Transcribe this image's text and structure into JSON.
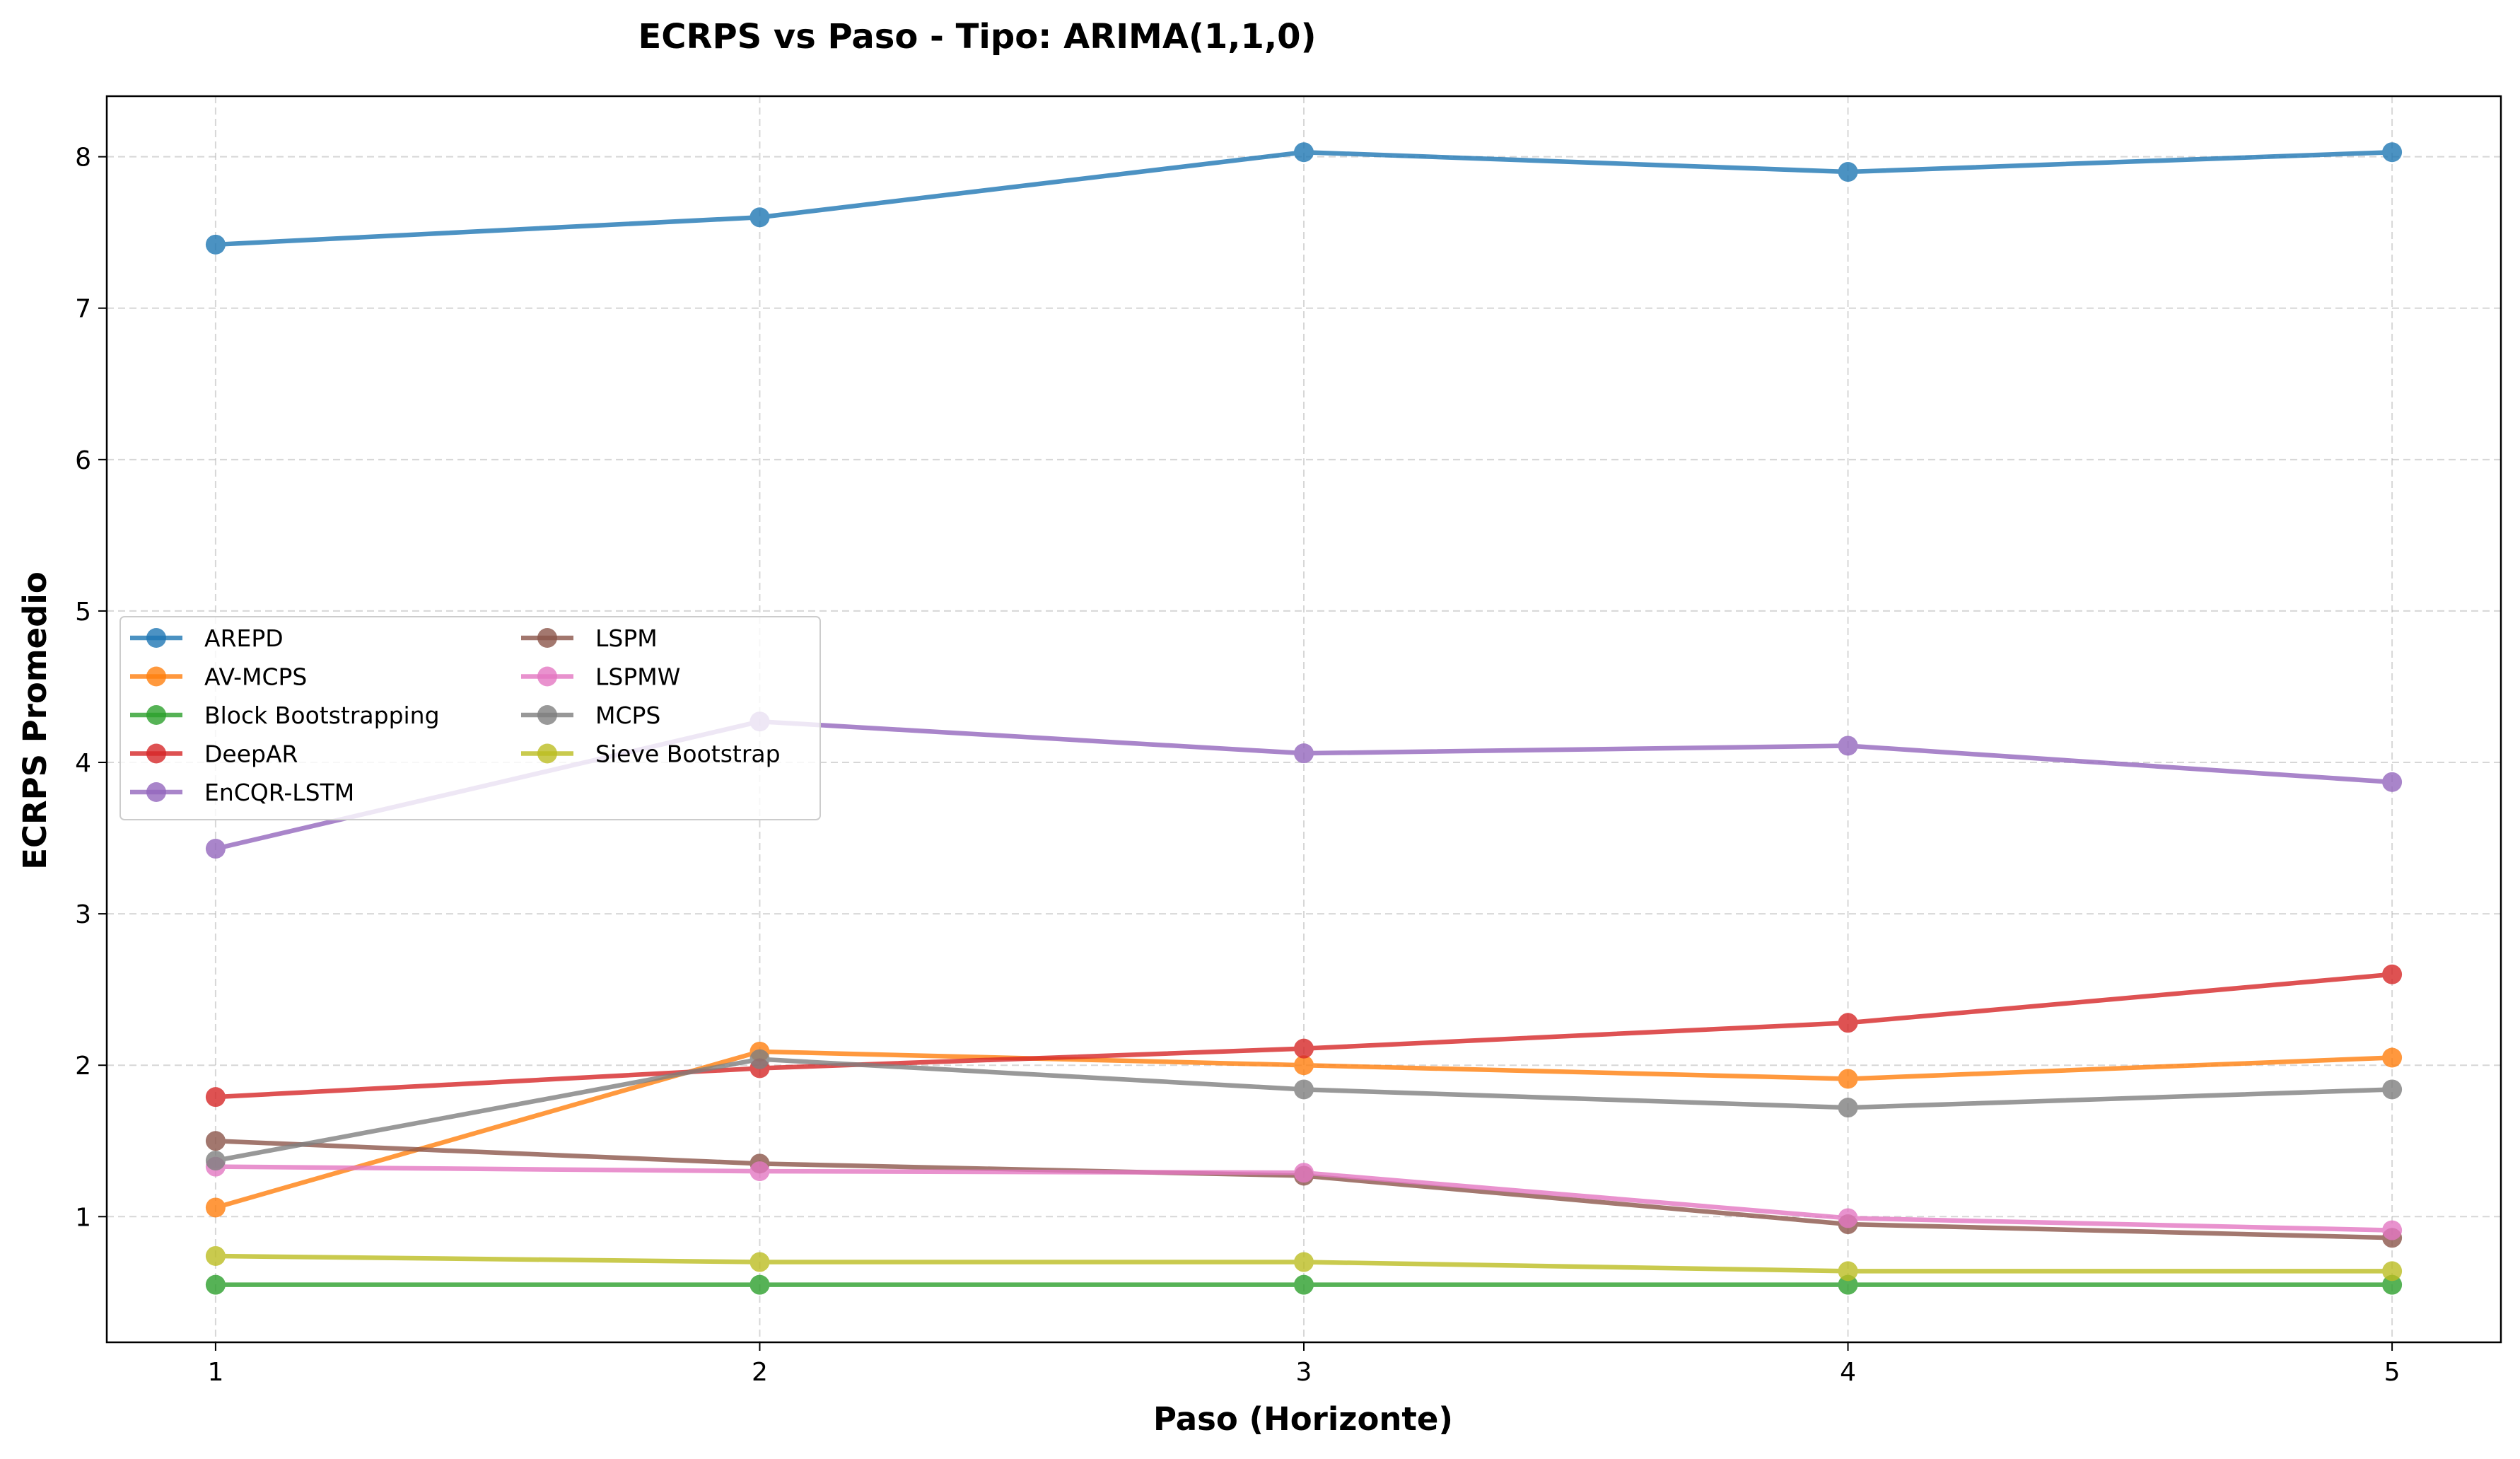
{
  "chart_data": {
    "type": "line",
    "title": "ECRPS vs Paso - Tipo: ARIMA(1,1,0)",
    "xlabel": "Paso (Horizonte)",
    "ylabel": "ECRPS Promedio",
    "x": [
      1,
      2,
      3,
      4,
      5
    ],
    "xlim": [
      0.8,
      5.2
    ],
    "ylim": [
      0.17,
      8.4
    ],
    "yticks": [
      1,
      2,
      3,
      4,
      5,
      6,
      7,
      8
    ],
    "grid": true,
    "legend_position": "center-left",
    "legend_columns": 2,
    "series": [
      {
        "name": "AREPD",
        "color": "#1f77b4",
        "values": [
          7.42,
          7.6,
          8.03,
          7.9,
          8.03
        ]
      },
      {
        "name": "AV-MCPS",
        "color": "#ff7f0e",
        "values": [
          1.06,
          2.09,
          2.0,
          1.91,
          2.05
        ]
      },
      {
        "name": "Block Bootstrapping",
        "color": "#2ca02c",
        "values": [
          0.55,
          0.55,
          0.55,
          0.55,
          0.55
        ]
      },
      {
        "name": "DeepAR",
        "color": "#d62728",
        "values": [
          1.79,
          1.98,
          2.11,
          2.28,
          2.6
        ]
      },
      {
        "name": "EnCQR-LSTM",
        "color": "#9467bd",
        "values": [
          3.43,
          4.27,
          4.06,
          4.11,
          3.87
        ]
      },
      {
        "name": "LSPM",
        "color": "#8c564b",
        "values": [
          1.5,
          1.35,
          1.27,
          0.95,
          0.86
        ]
      },
      {
        "name": "LSPMW",
        "color": "#e377c2",
        "values": [
          1.33,
          1.3,
          1.29,
          0.99,
          0.91
        ]
      },
      {
        "name": "MCPS",
        "color": "#7f7f7f",
        "values": [
          1.37,
          2.04,
          1.84,
          1.72,
          1.84
        ]
      },
      {
        "name": "Sieve Bootstrap",
        "color": "#bcbd22",
        "values": [
          0.74,
          0.7,
          0.7,
          0.64,
          0.64
        ]
      }
    ]
  }
}
